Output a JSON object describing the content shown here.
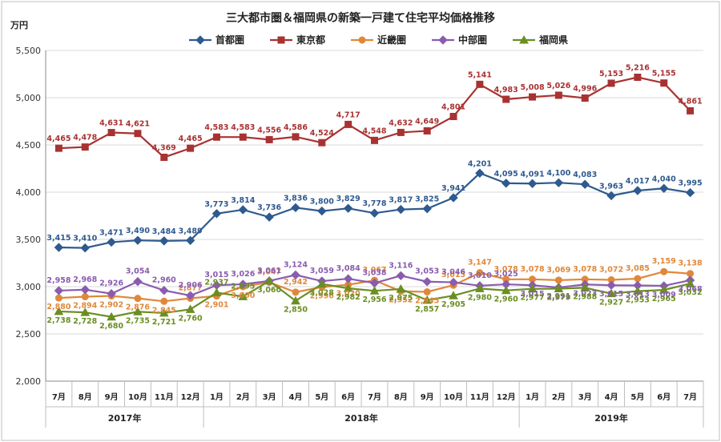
{
  "chart_data": {
    "type": "line",
    "title": "三大都市圏＆福岡県の新築一戸建て住宅平均価格推移",
    "unit": "万円",
    "ylim": [
      2000,
      5500
    ],
    "yticks": [
      "2,000",
      "2,500",
      "3,000",
      "3,500",
      "4,000",
      "4,500",
      "5,000",
      "5,500"
    ],
    "ytick_values": [
      2000,
      2500,
      3000,
      3500,
      4000,
      4500,
      5000,
      5500
    ],
    "categories": [
      "7月",
      "8月",
      "9月",
      "10月",
      "11月",
      "12月",
      "1月",
      "2月",
      "3月",
      "4月",
      "5月",
      "6月",
      "7月",
      "8月",
      "9月",
      "10月",
      "11月",
      "12月",
      "1月",
      "2月",
      "3月",
      "4月",
      "5月",
      "6月",
      "7月"
    ],
    "year_groups": [
      {
        "label": "2017年",
        "start": 0,
        "end": 5
      },
      {
        "label": "2018年",
        "start": 6,
        "end": 17
      },
      {
        "label": "2019年",
        "start": 18,
        "end": 24
      }
    ],
    "grid": true,
    "legend_position": "top",
    "series": [
      {
        "name": "首都圏",
        "color": "#2E5A8F",
        "marker": "diamond",
        "values": [
          3415,
          3410,
          3471,
          3490,
          3484,
          3489,
          3773,
          3814,
          3736,
          3836,
          3800,
          3829,
          3778,
          3817,
          3825,
          3941,
          4201,
          4095,
          4091,
          4100,
          4083,
          3963,
          4017,
          4040,
          3995
        ],
        "labels": [
          "3,415",
          "3,410",
          "3,471",
          "3,490",
          "3,484",
          "3,489",
          "3,773",
          "3,814",
          "3,736",
          "3,836",
          "3,800",
          "3,829",
          "3,778",
          "3,817",
          "3,825",
          "3,941",
          "4,201",
          "4,095",
          "4,091",
          "4,100",
          "4,083",
          "3,963",
          "4,017",
          "4,040",
          "3,995"
        ]
      },
      {
        "name": "東京都",
        "color": "#A83232",
        "marker": "square",
        "values": [
          4465,
          4478,
          4631,
          4621,
          4369,
          4465,
          4583,
          4583,
          4556,
          4586,
          4524,
          4717,
          4548,
          4632,
          4649,
          4801,
          5141,
          4983,
          5008,
          5026,
          4996,
          5153,
          5216,
          5155,
          4861
        ],
        "labels": [
          "4,465",
          "4,478",
          "4,631",
          "4,621",
          "4,369",
          "4,465",
          "4,583",
          "4,583",
          "4,556",
          "4,586",
          "4,524",
          "4,717",
          "4,548",
          "4,632",
          "4,649",
          "4,801",
          "5,141",
          "4,983",
          "5,008",
          "5,026",
          "4,996",
          "5,153",
          "5,216",
          "5,155",
          "4,861"
        ]
      },
      {
        "name": "近畿圏",
        "color": "#E0883A",
        "marker": "circle",
        "values": [
          2880,
          2894,
          2902,
          2876,
          2845,
          2877,
          2901,
          3000,
          3047,
          2942,
          2996,
          3020,
          3067,
          2952,
          2945,
          3015,
          3147,
          3078,
          3078,
          3069,
          3078,
          3072,
          3085,
          3159,
          3138
        ],
        "labels": [
          "2,880",
          "2,894",
          "2,902",
          "2,876",
          "2,845",
          "2,877",
          "2,901",
          "3,000",
          "3,047",
          "2,942",
          "2,996",
          "3,020",
          "3,067",
          "2,952",
          "2,945",
          "3,015",
          "3,147",
          "3,078",
          "3,078",
          "3,069",
          "3,078",
          "3,072",
          "3,085",
          "3,159",
          "3,138"
        ]
      },
      {
        "name": "中部圏",
        "color": "#8A5CAF",
        "marker": "diamond",
        "values": [
          2958,
          2968,
          2926,
          3054,
          2960,
          2906,
          3015,
          3026,
          3061,
          3124,
          3059,
          3084,
          3038,
          3116,
          3053,
          3046,
          3010,
          3025,
          3015,
          2991,
          3023,
          3015,
          3013,
          3009,
          3068
        ],
        "labels": [
          "2,958",
          "2,968",
          "2,926",
          "3,054",
          "2,960",
          "2,906",
          "3,015",
          "3,026",
          "3,061",
          "3,124",
          "3,059",
          "3,084",
          "3,038",
          "3,116",
          "3,053",
          "3,046",
          "3,010",
          "3,025",
          "3,015",
          "2,991",
          "3,023",
          "3,015",
          "3,013",
          "3,009",
          "3,068"
        ]
      },
      {
        "name": "福岡県",
        "color": "#6B8E23",
        "marker": "triangle",
        "values": [
          2738,
          2728,
          2680,
          2735,
          2721,
          2760,
          2937,
          2895,
          3060,
          2850,
          3028,
          2982,
          2956,
          2975,
          2857,
          2905,
          2980,
          2960,
          2977,
          2979,
          2988,
          2927,
          2953,
          2965,
          3032
        ],
        "labels": [
          "2,738",
          "2,728",
          "2,680",
          "2,735",
          "2,721",
          "2,760",
          "2,937",
          "2,895",
          "3,060",
          "2,850",
          "3,028",
          "2,982",
          "2,956",
          "2,975",
          "2,857",
          "2,905",
          "2,980",
          "2,960",
          "2,977",
          "2,979",
          "2,988",
          "2,927",
          "2,953",
          "2,965",
          "3,032"
        ]
      }
    ]
  }
}
